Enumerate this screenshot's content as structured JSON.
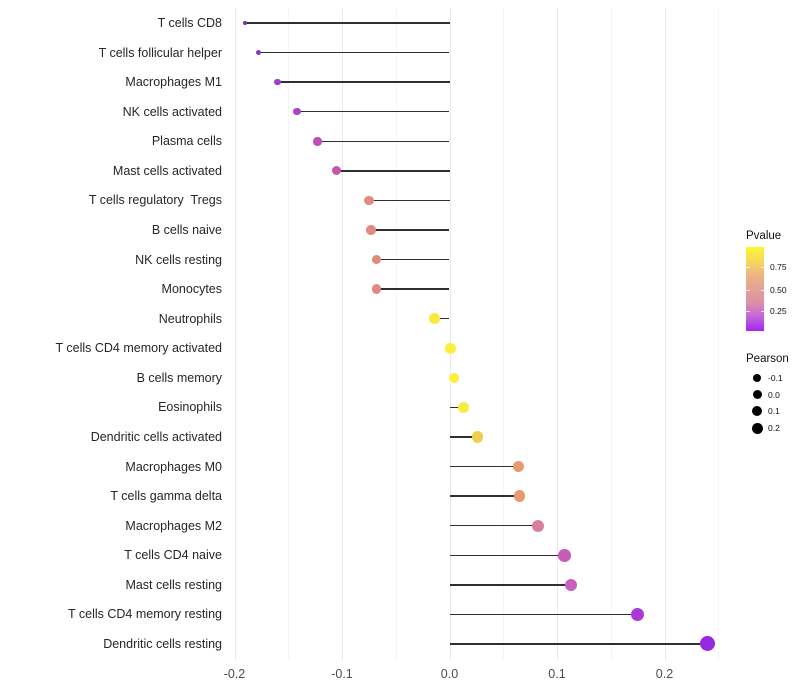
{
  "chart_data": {
    "type": "lollipop",
    "title": "",
    "xlabel": "",
    "ylabel": "",
    "x_tick_labels": [
      "-0.2",
      "-0.1",
      "0.0",
      "0.1",
      "0.2"
    ],
    "x_tick_values": [
      -0.2,
      -0.1,
      0.0,
      0.1,
      0.2
    ],
    "x_minor_values": [
      -0.15,
      -0.05,
      0.05,
      0.15,
      0.25
    ],
    "xlim": [
      -0.208,
      0.27
    ],
    "grid": "vertical only, major + minor, no axis lines",
    "stem_color": "#2f2f2f",
    "rows": [
      {
        "label": "T cells CD8",
        "pearson": -0.19,
        "pvalue_color": "#7E2DB3",
        "size": 4
      },
      {
        "label": "T cells follicular helper",
        "pearson": -0.178,
        "pvalue_color": "#8C35C4",
        "size": 5
      },
      {
        "label": "Macrophages M1",
        "pearson": -0.16,
        "pvalue_color": "#9E3FC9",
        "size": 6.5
      },
      {
        "label": "NK cells activated",
        "pearson": -0.142,
        "pvalue_color": "#A946C6",
        "size": 7.5
      },
      {
        "label": "Plasma cells",
        "pearson": -0.123,
        "pvalue_color": "#C04DB8",
        "size": 8.5
      },
      {
        "label": "Mast cells activated",
        "pearson": -0.105,
        "pvalue_color": "#C455B3",
        "size": 9
      },
      {
        "label": "T cells regulatory  Tregs",
        "pearson": -0.075,
        "pvalue_color": "#DF8B80",
        "size": 9.5
      },
      {
        "label": "B cells naive",
        "pearson": -0.073,
        "pvalue_color": "#DF8B80",
        "size": 9.5
      },
      {
        "label": "NK cells resting",
        "pearson": -0.068,
        "pvalue_color": "#DE8A7E",
        "size": 9.5
      },
      {
        "label": "Monocytes",
        "pearson": -0.068,
        "pvalue_color": "#DE8A7E",
        "size": 9.5
      },
      {
        "label": "Neutrophils",
        "pearson": -0.014,
        "pvalue_color": "#FBE93E",
        "size": 10.5
      },
      {
        "label": "T cells CD4 memory activated",
        "pearson": 0.001,
        "pvalue_color": "#FBEF3A",
        "size": 10.5
      },
      {
        "label": "B cells memory",
        "pearson": 0.004,
        "pvalue_color": "#FAF03A",
        "size": 10.5
      },
      {
        "label": "Eosinophils",
        "pearson": 0.013,
        "pvalue_color": "#F8EC3E",
        "size": 11
      },
      {
        "label": "Dendritic cells activated",
        "pearson": 0.026,
        "pvalue_color": "#F0CE4D",
        "size": 11.5
      },
      {
        "label": "Macrophages M0",
        "pearson": 0.064,
        "pvalue_color": "#E79A70",
        "size": 11.5
      },
      {
        "label": "T cells gamma delta",
        "pearson": 0.065,
        "pvalue_color": "#E79A70",
        "size": 11.5
      },
      {
        "label": "Macrophages M2",
        "pearson": 0.082,
        "pvalue_color": "#DA7F9B",
        "size": 12
      },
      {
        "label": "T cells CD4 naive",
        "pearson": 0.107,
        "pvalue_color": "#C85BB9",
        "size": 12.5
      },
      {
        "label": "Mast cells resting",
        "pearson": 0.113,
        "pvalue_color": "#C75FBC",
        "size": 12.5
      },
      {
        "label": "T cells CD4 memory resting",
        "pearson": 0.175,
        "pvalue_color": "#AA39D7",
        "size": 13.5
      },
      {
        "label": "Dendritic cells resting",
        "pearson": 0.24,
        "pvalue_color": "#9928E2",
        "size": 15
      }
    ],
    "legend": {
      "pvalue": {
        "title": "Pvalue",
        "tick_labels": [
          "0.75",
          "0.50",
          "0.25"
        ],
        "tick_fracs_from_top": [
          0.24,
          0.51,
          0.76
        ],
        "gradient_stops": [
          "#FBF831",
          "#F5DA5B",
          "#EBB583",
          "#E2A295",
          "#DA8FA9",
          "#C364D9",
          "#A426EE"
        ]
      },
      "pearson": {
        "title": "Pearson",
        "items": [
          {
            "label": "-0.1",
            "size": 8
          },
          {
            "label": "0.0",
            "size": 9
          },
          {
            "label": "0.1",
            "size": 10
          },
          {
            "label": "0.2",
            "size": 11
          }
        ]
      }
    }
  }
}
